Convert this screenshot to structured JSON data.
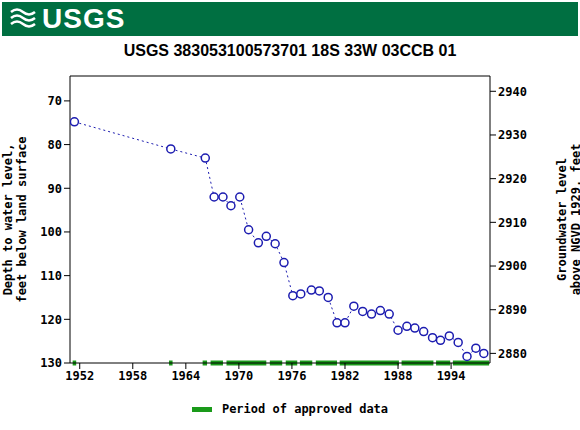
{
  "chart_data": {
    "type": "line",
    "header": "USGS",
    "title": "USGS 383053100573701 18S 33W 03CCB 01",
    "y_label": "Depth to water level, feet below land surface",
    "y2_label": "Groundwater level above NGVD 1929, feet",
    "x": [
      1951.4,
      1962.3,
      1966.2,
      1967.2,
      1968.2,
      1969.1,
      1970.1,
      1971.1,
      1972.2,
      1973.1,
      1974.1,
      1975.1,
      1976.1,
      1977.0,
      1978.2,
      1979.1,
      1980.1,
      1981.1,
      1982.0,
      1983.0,
      1984.0,
      1985.0,
      1986.0,
      1987.0,
      1988.0,
      1989.0,
      1989.9,
      1990.9,
      1991.9,
      1992.8,
      1993.8,
      1994.8,
      1995.8,
      1996.8,
      1997.7
    ],
    "series": [
      {
        "name": "Depth to water level",
        "color": "#1c1cb0",
        "marker": "circle",
        "line_style": "dotted",
        "values": [
          74.8,
          81,
          83.1,
          92,
          92,
          94,
          92,
          99.5,
          102.5,
          101,
          102.7,
          107,
          114.6,
          114.2,
          113.3,
          113.5,
          115,
          120.8,
          120.8,
          117,
          118.2,
          118.8,
          118,
          118.8,
          122.5,
          121.6,
          122,
          122.8,
          124.2,
          124.8,
          123.8,
          125.3,
          128.5,
          126.6,
          127.8
        ]
      }
    ],
    "xlim": [
      1950.9,
      1998.4
    ],
    "xticks": [
      1952,
      1958,
      1964,
      1970,
      1976,
      1982,
      1988,
      1994
    ],
    "ylim": [
      64.3,
      130
    ],
    "yticks": [
      70,
      80,
      90,
      100,
      110,
      120,
      130
    ],
    "y2lim": [
      2877.8,
      2943.5
    ],
    "y2ticks": [
      2880,
      2890,
      2900,
      2910,
      2920,
      2930,
      2940
    ],
    "grid": false,
    "approved_data": {
      "name": "Period of approved data",
      "color": "#1a9a1a",
      "periods": [
        [
          1951.2,
          1951.6
        ],
        [
          1962.1,
          1962.5
        ],
        [
          1965.9,
          1966.4
        ],
        [
          1966.8,
          1968.2
        ],
        [
          1968.6,
          1973.1
        ],
        [
          1973.5,
          1974.9
        ],
        [
          1975.3,
          1976.6
        ],
        [
          1976.9,
          1978.3
        ],
        [
          1978.7,
          1981.1
        ],
        [
          1981.4,
          1988.1
        ],
        [
          1988.4,
          1992.0
        ],
        [
          1992.3,
          1993.9
        ],
        [
          1994.2,
          1998.3
        ]
      ]
    }
  }
}
